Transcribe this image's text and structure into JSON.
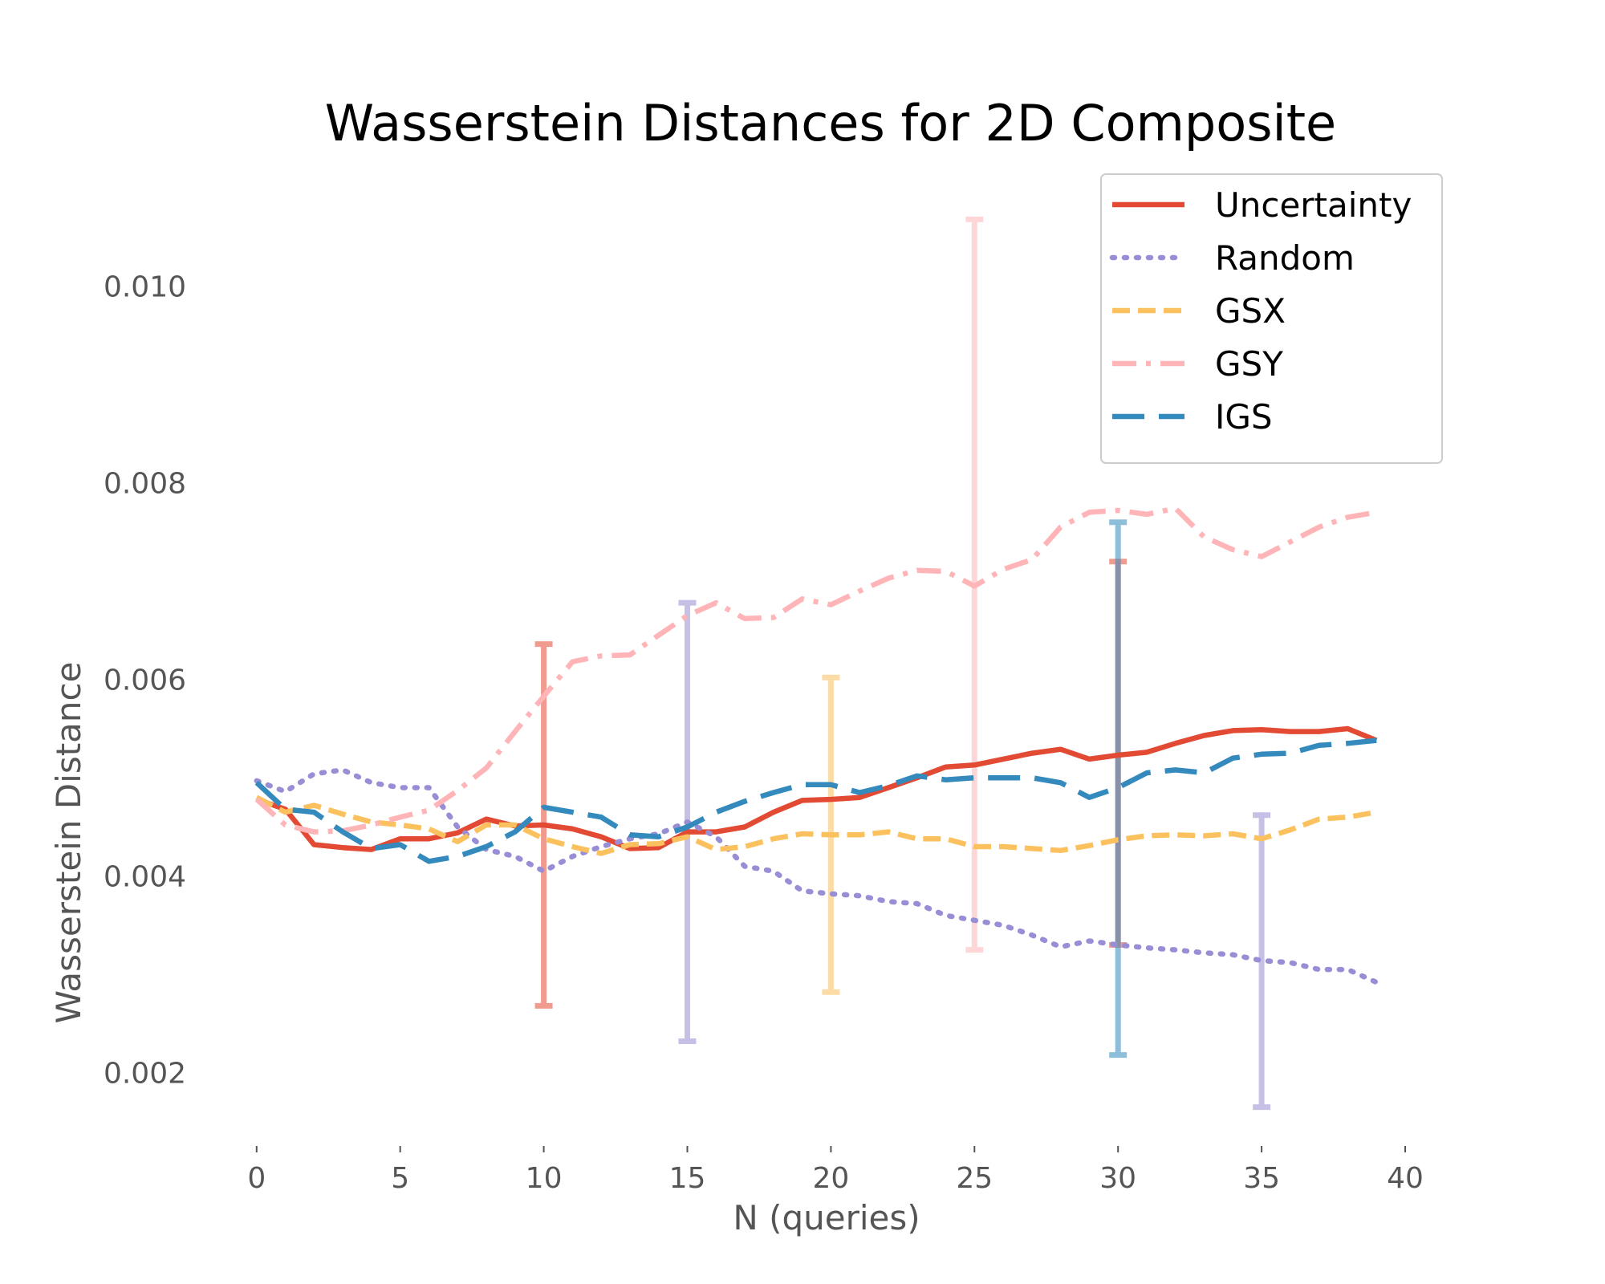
{
  "chart_data": {
    "type": "line",
    "title": "Wasserstein Distances for 2D Composite",
    "xlabel": "N (queries)",
    "ylabel": "Wasserstein Distance",
    "xlim": [
      -1.95,
      40.95
    ],
    "ylim": [
      0.00132,
      0.01132
    ],
    "xticks": [
      0,
      5,
      10,
      15,
      20,
      25,
      30,
      35,
      40
    ],
    "xtick_labels": [
      "0",
      "5",
      "10",
      "15",
      "20",
      "25",
      "30",
      "35",
      "40"
    ],
    "yticks": [
      0.002,
      0.004,
      0.006,
      0.008,
      0.01
    ],
    "ytick_labels": [
      "0.002",
      "0.004",
      "0.006",
      "0.008",
      "0.010"
    ],
    "grid": false,
    "legend_position": "top-right",
    "x": [
      0,
      1,
      2,
      3,
      4,
      5,
      6,
      7,
      8,
      9,
      10,
      11,
      12,
      13,
      14,
      15,
      16,
      17,
      18,
      19,
      20,
      21,
      22,
      23,
      24,
      25,
      26,
      27,
      28,
      29,
      30,
      31,
      32,
      33,
      34,
      35,
      36,
      37,
      38,
      39
    ],
    "series": [
      {
        "name": "Uncertainty",
        "color": "#E24A33",
        "dash": "solid",
        "values": [
          0.00478,
          0.00468,
          0.00432,
          0.00429,
          0.00427,
          0.00438,
          0.00438,
          0.00444,
          0.00458,
          0.00451,
          0.00452,
          0.00448,
          0.0044,
          0.00428,
          0.00429,
          0.00445,
          0.00445,
          0.0045,
          0.00465,
          0.00477,
          0.00478,
          0.0048,
          0.0049,
          0.005,
          0.00511,
          0.00513,
          0.00519,
          0.00525,
          0.00529,
          0.00519,
          0.00523,
          0.00526,
          0.00535,
          0.00543,
          0.00548,
          0.00549,
          0.00547,
          0.00547,
          0.0055,
          0.00538
        ],
        "error_bars": [
          {
            "x": 10,
            "low": 0.00268,
            "high": 0.00636
          },
          {
            "x": 30,
            "low": 0.0033,
            "high": 0.0072
          }
        ]
      },
      {
        "name": "Random",
        "color": "#988ED5",
        "dash": "dotted",
        "values": [
          0.00497,
          0.00486,
          0.00504,
          0.00508,
          0.00495,
          0.0049,
          0.0049,
          0.0045,
          0.00427,
          0.0042,
          0.00405,
          0.0042,
          0.0043,
          0.00438,
          0.00443,
          0.00455,
          0.0044,
          0.0041,
          0.00405,
          0.00385,
          0.00382,
          0.0038,
          0.00374,
          0.00372,
          0.0036,
          0.00355,
          0.0035,
          0.0034,
          0.00328,
          0.00334,
          0.0033,
          0.00327,
          0.00325,
          0.00322,
          0.0032,
          0.00314,
          0.00312,
          0.00305,
          0.00305,
          0.00292
        ],
        "error_bars": [
          {
            "x": 15,
            "low": 0.00232,
            "high": 0.00678
          },
          {
            "x": 35,
            "low": 0.00165,
            "high": 0.00462
          }
        ]
      },
      {
        "name": "GSX",
        "color": "#FBC15E",
        "dash": "dashed",
        "values": [
          0.0048,
          0.00465,
          0.00472,
          0.00463,
          0.00455,
          0.00452,
          0.00448,
          0.00435,
          0.00452,
          0.00452,
          0.00438,
          0.0043,
          0.00423,
          0.00432,
          0.00433,
          0.0044,
          0.00427,
          0.0043,
          0.00438,
          0.00443,
          0.00442,
          0.00442,
          0.00445,
          0.00438,
          0.00438,
          0.0043,
          0.0043,
          0.00428,
          0.00426,
          0.00431,
          0.00437,
          0.00441,
          0.00442,
          0.00441,
          0.00443,
          0.00438,
          0.00447,
          0.00458,
          0.0046,
          0.00465
        ],
        "error_bars": [
          {
            "x": 20,
            "low": 0.00282,
            "high": 0.00602
          }
        ]
      },
      {
        "name": "GSY",
        "color": "#FFB5B8",
        "dash": "dashdot",
        "values": [
          0.00478,
          0.00452,
          0.00445,
          0.00446,
          0.00452,
          0.0046,
          0.00467,
          0.00487,
          0.0051,
          0.00547,
          0.00583,
          0.00618,
          0.00624,
          0.00625,
          0.00645,
          0.00665,
          0.00678,
          0.00662,
          0.00663,
          0.00682,
          0.00676,
          0.0069,
          0.00703,
          0.00711,
          0.0071,
          0.00695,
          0.00712,
          0.00722,
          0.00755,
          0.0077,
          0.00772,
          0.00768,
          0.00774,
          0.00745,
          0.00732,
          0.00725,
          0.0074,
          0.00755,
          0.00765,
          0.0077
        ],
        "error_bars": [
          {
            "x": 25,
            "low": 0.00325,
            "high": 0.01068
          }
        ]
      },
      {
        "name": "IGS",
        "color": "#348ABD",
        "dash": "longdash",
        "values": [
          0.00495,
          0.00468,
          0.00465,
          0.00445,
          0.00428,
          0.00432,
          0.00415,
          0.0042,
          0.0043,
          0.00445,
          0.0047,
          0.00465,
          0.0046,
          0.00442,
          0.0044,
          0.0045,
          0.00465,
          0.00476,
          0.00485,
          0.00493,
          0.00493,
          0.00485,
          0.00492,
          0.00502,
          0.00498,
          0.005,
          0.005,
          0.005,
          0.00495,
          0.0048,
          0.0049,
          0.00505,
          0.00508,
          0.00505,
          0.0052,
          0.00524,
          0.00525,
          0.00533,
          0.00535,
          0.00538
        ],
        "error_bars": [
          {
            "x": 30,
            "low": 0.00218,
            "high": 0.0076
          }
        ]
      }
    ]
  }
}
